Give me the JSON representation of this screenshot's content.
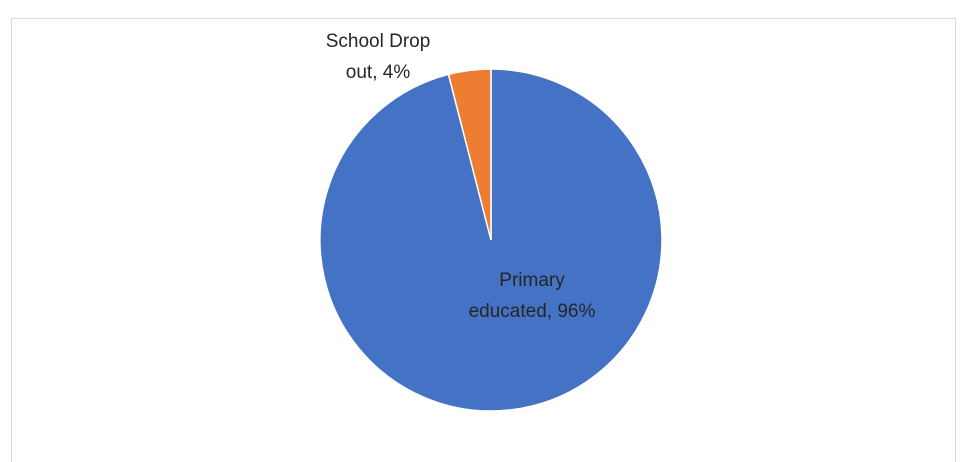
{
  "chart_data": {
    "type": "pie",
    "categories": [
      "Primary educated",
      "School Drop out"
    ],
    "values": [
      96,
      4
    ],
    "colors": [
      "#4472C4",
      "#ED7D31"
    ],
    "data_labels": [
      [
        "Primary",
        "educated, 96%"
      ],
      [
        "School Drop",
        "out, 4%"
      ]
    ],
    "title": "",
    "legend": "none",
    "start_angle_deg": 0,
    "direction": "counterclockwise"
  }
}
